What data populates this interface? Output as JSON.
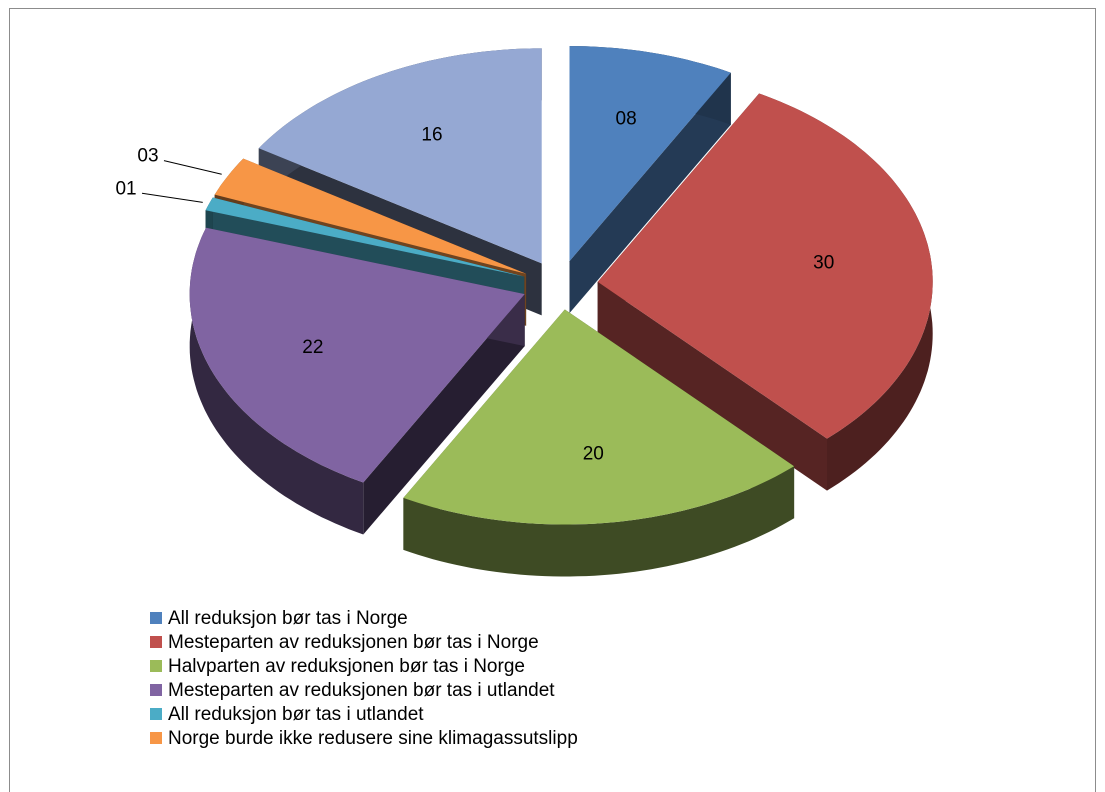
{
  "chart_data": {
    "type": "pie",
    "categories": [
      "All reduksjon bør tas i Norge",
      "Mesteparten av reduksjonen bør tas i Norge",
      "Halvparten av reduksjonen bør tas i Norge",
      "Mesteparten av reduksjonen bør tas i utlandet",
      "All reduksjon bør tas i utlandet",
      "Norge burde ikke redusere sine klimagassutslipp",
      null
    ],
    "values": [
      8,
      30,
      20,
      22,
      1,
      3,
      16
    ],
    "value_labels": [
      "08",
      "30",
      "20",
      "22",
      "01",
      "03",
      "16"
    ],
    "colors": [
      "#4f81bd",
      "#c0504d",
      "#9bbb59",
      "#8064a2",
      "#4bacc6",
      "#f79646",
      "#95a8d3"
    ],
    "legend": "bottom"
  }
}
